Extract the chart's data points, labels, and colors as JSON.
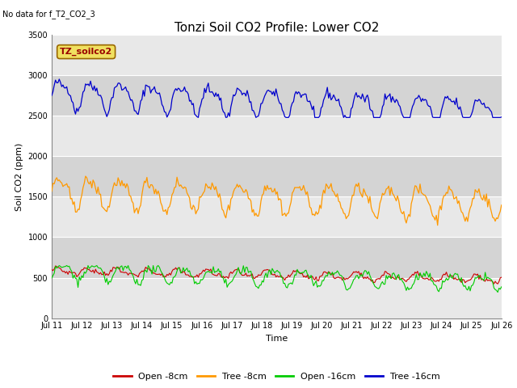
{
  "title": "Tonzi Soil CO2 Profile: Lower CO2",
  "subtitle": "No data for f_T2_CO2_3",
  "ylabel": "Soil CO2 (ppm)",
  "xlabel": "Time",
  "legend_label": "TZ_soilco2",
  "xtick_labels": [
    "Jul 11",
    "Jul 12",
    "Jul 13",
    "Jul 14",
    "Jul 15",
    "Jul 16",
    "Jul 17",
    "Jul 18",
    "Jul 19",
    "Jul 20",
    "Jul 21",
    "Jul 22",
    "Jul 23",
    "Jul 24",
    "Jul 25",
    "Jul 26"
  ],
  "ylim": [
    0,
    3500
  ],
  "yticks": [
    0,
    500,
    1000,
    1500,
    2000,
    2500,
    3000,
    3500
  ],
  "series_colors": {
    "open_8cm": "#cc0000",
    "tree_8cm": "#ff9900",
    "open_16cm": "#00cc00",
    "tree_16cm": "#0000cc"
  },
  "series_labels": [
    "Open -8cm",
    "Tree -8cm",
    "Open -16cm",
    "Tree -16cm"
  ],
  "fig_bg_color": "#ffffff",
  "band_even": "#e8e8e8",
  "band_odd": "#d4d4d4",
  "title_fontsize": 11,
  "tick_fontsize": 7,
  "label_fontsize": 8,
  "legend_fontsize": 8
}
